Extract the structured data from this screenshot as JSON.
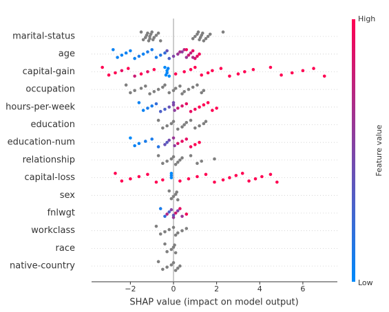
{
  "chart_data": {
    "type": "beeswarm",
    "x_label": "SHAP value (impact on model output)",
    "colorbar_label": "Feature value",
    "colorbar_high": "High",
    "colorbar_low": "Low",
    "low_color": "#008afb",
    "high_color": "#ff0052",
    "xlim": [
      -3.8,
      7.6
    ],
    "xticks": [
      {
        "value": -2,
        "label": "−2"
      },
      0,
      2,
      4,
      6
    ],
    "features": [
      {
        "name": "marital-status",
        "color": "#7f7f7f",
        "values": [
          -1.5,
          -1.4,
          -1.3,
          -1.25,
          -1.2,
          -1.15,
          -1.1,
          -1.1,
          -1.05,
          -1.0,
          -0.95,
          -0.9,
          -0.8,
          -0.7,
          -0.6,
          0.9,
          1.0,
          1.1,
          1.15,
          1.2,
          1.25,
          1.3,
          1.35,
          1.4,
          1.5,
          1.6,
          1.7,
          2.3
        ]
      },
      {
        "name": "age",
        "values": [
          -2.8,
          -2.6,
          -2.4,
          -2.2,
          -2.0,
          -1.8,
          -1.6,
          -1.4,
          -1.2,
          -1.0,
          -0.8,
          -0.6,
          -0.4,
          -0.3,
          -0.2,
          0.0,
          0.2,
          0.4,
          0.5,
          0.6,
          0.7,
          0.8,
          0.9,
          1.0,
          1.1,
          1.2,
          0.3,
          0.6,
          0.9
        ],
        "feature_values": [
          0.05,
          0.05,
          0.05,
          0.05,
          0.05,
          0.05,
          0.1,
          0.05,
          0.1,
          0.1,
          0.1,
          0.15,
          0.2,
          0.4,
          0.3,
          0.5,
          0.6,
          0.55,
          0.7,
          0.6,
          0.8,
          0.75,
          0.9,
          0.85,
          0.9,
          0.95,
          0.65,
          0.95,
          0.7
        ]
      },
      {
        "name": "capital-gain",
        "values": [
          -3.3,
          -3.0,
          -2.7,
          -2.4,
          -2.1,
          -1.8,
          -1.5,
          -1.2,
          -0.9,
          -0.4,
          -0.35,
          -0.3,
          -0.3,
          -0.25,
          -0.2,
          0.1,
          0.5,
          0.8,
          1.0,
          1.3,
          1.6,
          1.8,
          2.2,
          2.6,
          3.0,
          3.3,
          3.7,
          4.5,
          5.0,
          5.5,
          6.0,
          6.5,
          7.0
        ],
        "feature_values": [
          1,
          1,
          1,
          0.9,
          1,
          0.8,
          1,
          0.9,
          1,
          0,
          0,
          0.05,
          0,
          0.05,
          0,
          1,
          1,
          1,
          1,
          1,
          1,
          1,
          1,
          1,
          1,
          1,
          1,
          1,
          1,
          1,
          1,
          1,
          1
        ]
      },
      {
        "name": "occupation",
        "color": "#7f7f7f",
        "values": [
          -2.2,
          -2.0,
          -1.8,
          -1.5,
          -1.3,
          -1.1,
          -0.9,
          -0.7,
          -0.5,
          -0.4,
          -0.2,
          0.0,
          0.1,
          0.3,
          0.4,
          0.5,
          0.7,
          0.9,
          1.1,
          1.3,
          1.4
        ]
      },
      {
        "name": "hours-per-week",
        "values": [
          -1.6,
          -1.4,
          -1.2,
          -1.0,
          -0.8,
          -0.6,
          -0.4,
          -0.2,
          0.0,
          0.0,
          0.05,
          0.2,
          0.4,
          0.6,
          0.8,
          1.0,
          1.2,
          1.4,
          1.6,
          1.8,
          2.0
        ],
        "feature_values": [
          0.05,
          0.05,
          0.1,
          0.1,
          0.2,
          0.3,
          0.3,
          0.4,
          0.5,
          0.45,
          0.55,
          0.8,
          0.85,
          0.9,
          0.9,
          0.95,
          1,
          1,
          1,
          1,
          1
        ]
      },
      {
        "name": "education",
        "color": "#7f7f7f",
        "values": [
          -0.7,
          -0.5,
          -0.3,
          -0.1,
          0.0,
          0.2,
          0.4,
          0.5,
          0.6,
          0.8,
          1.0,
          1.2,
          1.4,
          1.5
        ]
      },
      {
        "name": "education-num",
        "values": [
          -2.0,
          -1.8,
          -1.6,
          -1.3,
          -1.0,
          -0.7,
          -0.4,
          -0.3,
          -0.2,
          0.0,
          0.05,
          0.2,
          0.4,
          0.6,
          0.8,
          1.0,
          1.2
        ],
        "feature_values": [
          0,
          0.05,
          0.05,
          0.1,
          0.1,
          0.15,
          0.4,
          0.35,
          0.45,
          0.6,
          0.55,
          0.85,
          0.9,
          0.9,
          0.95,
          1,
          1
        ]
      },
      {
        "name": "relationship",
        "color": "#7f7f7f",
        "values": [
          -0.7,
          -0.5,
          -0.3,
          -0.1,
          0.0,
          0.1,
          0.2,
          0.3,
          0.4,
          0.8,
          1.1,
          1.3,
          1.9
        ]
      },
      {
        "name": "capital-loss",
        "values": [
          -2.7,
          -2.4,
          -2.0,
          -1.6,
          -1.2,
          -0.8,
          -0.5,
          -0.1,
          -0.1,
          -0.1,
          0.3,
          0.7,
          1.1,
          1.5,
          1.9,
          2.3,
          2.6,
          2.9,
          3.2,
          3.5,
          3.8,
          4.1,
          4.5,
          4.8
        ],
        "feature_values": [
          1,
          1,
          1,
          1,
          1,
          1,
          1,
          0,
          0.05,
          0,
          1,
          1,
          1,
          1,
          1,
          1,
          1,
          1,
          1,
          1,
          1,
          1,
          1,
          1
        ]
      },
      {
        "name": "sex",
        "color": "#7f7f7f",
        "values": [
          -0.2,
          -0.1,
          0.0,
          0.1,
          0.15,
          0.2
        ]
      },
      {
        "name": "fnlwgt",
        "values": [
          -0.6,
          -0.4,
          -0.3,
          -0.2,
          -0.1,
          0.0,
          0.0,
          0.1,
          0.2,
          0.3,
          0.4,
          0.6
        ],
        "feature_values": [
          0.1,
          0.2,
          0.7,
          0.3,
          0.5,
          0.6,
          0.4,
          0.8,
          0.5,
          0.9,
          0.6,
          0.95
        ]
      },
      {
        "name": "workclass",
        "color": "#7f7f7f",
        "values": [
          -0.8,
          -0.6,
          -0.4,
          -0.2,
          0.0,
          0.1,
          0.2,
          0.4,
          0.6
        ]
      },
      {
        "name": "race",
        "color": "#7f7f7f",
        "values": [
          -0.4,
          -0.3,
          -0.1,
          0.0,
          0.05,
          0.1
        ]
      },
      {
        "name": "native-country",
        "color": "#7f7f7f",
        "values": [
          -0.7,
          -0.5,
          -0.3,
          -0.1,
          0.0,
          0.1,
          0.2,
          0.3
        ]
      }
    ]
  }
}
